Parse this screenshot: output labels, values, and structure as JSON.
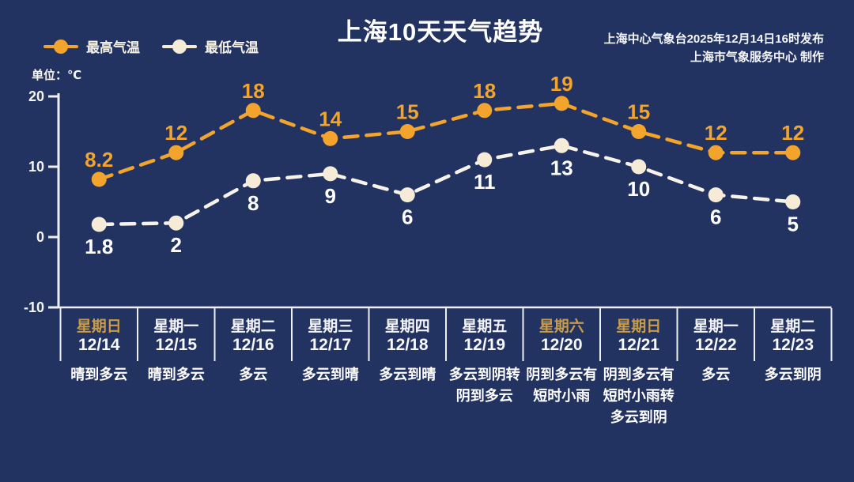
{
  "title": "上海10天天气趋势",
  "source": {
    "line1": "上海中心气象台2025年12月14日16时发布",
    "line2": "上海市气象服务中心  制作"
  },
  "unit_label": "单位：℃",
  "colors": {
    "background": "#233361",
    "high_series": "#F2A42C",
    "low_series_line": "#F7F3EA",
    "low_series_marker": "#F6EBD7",
    "value_label_high": "#F2A42C",
    "value_label_low": "#FFFFFF",
    "axis": "#EDEFF5",
    "weekend_label": "#C89B48",
    "text": "#FFFFFF"
  },
  "legend": [
    {
      "label": "最高气温",
      "color": "#F2A42C"
    },
    {
      "label": "最低气温",
      "color": "#F6EBD7"
    }
  ],
  "days": [
    {
      "weekday": "星期日",
      "date": "12/14",
      "weekend": true,
      "weather_lines": [
        "晴到多云"
      ]
    },
    {
      "weekday": "星期一",
      "date": "12/15",
      "weekend": false,
      "weather_lines": [
        "晴到多云"
      ]
    },
    {
      "weekday": "星期二",
      "date": "12/16",
      "weekend": false,
      "weather_lines": [
        "多云"
      ]
    },
    {
      "weekday": "星期三",
      "date": "12/17",
      "weekend": false,
      "weather_lines": [
        "多云到晴"
      ]
    },
    {
      "weekday": "星期四",
      "date": "12/18",
      "weekend": false,
      "weather_lines": [
        "多云到晴"
      ]
    },
    {
      "weekday": "星期五",
      "date": "12/19",
      "weekend": false,
      "weather_lines": [
        "多云到阴转",
        "阴到多云"
      ]
    },
    {
      "weekday": "星期六",
      "date": "12/20",
      "weekend": true,
      "weather_lines": [
        "阴到多云有",
        "短时小雨"
      ]
    },
    {
      "weekday": "星期日",
      "date": "12/21",
      "weekend": true,
      "weather_lines": [
        "阴到多云有",
        "短时小雨转",
        "多云到阴"
      ]
    },
    {
      "weekday": "星期一",
      "date": "12/22",
      "weekend": false,
      "weather_lines": [
        "多云"
      ]
    },
    {
      "weekday": "星期二",
      "date": "12/23",
      "weekend": false,
      "weather_lines": [
        "多云到阴"
      ]
    }
  ],
  "chart_data": {
    "type": "line",
    "title": "上海10天天气趋势",
    "ylabel": "单位：℃",
    "categories": [
      "12/14",
      "12/15",
      "12/16",
      "12/17",
      "12/18",
      "12/19",
      "12/20",
      "12/21",
      "12/22",
      "12/23"
    ],
    "series": [
      {
        "name": "最高气温",
        "values": [
          8.2,
          12,
          18,
          14,
          15,
          18,
          19,
          15,
          12,
          12
        ],
        "color": "#F2A42C"
      },
      {
        "name": "最低气温",
        "values": [
          1.8,
          2,
          8,
          9,
          6,
          11,
          13,
          10,
          6,
          5
        ],
        "color": "#F6EBD7"
      }
    ],
    "ylim": [
      -10,
      20
    ],
    "yticks": [
      20,
      10,
      0,
      -10
    ],
    "grid": false,
    "line_style": "dashed",
    "legend_position": "top-left"
  }
}
